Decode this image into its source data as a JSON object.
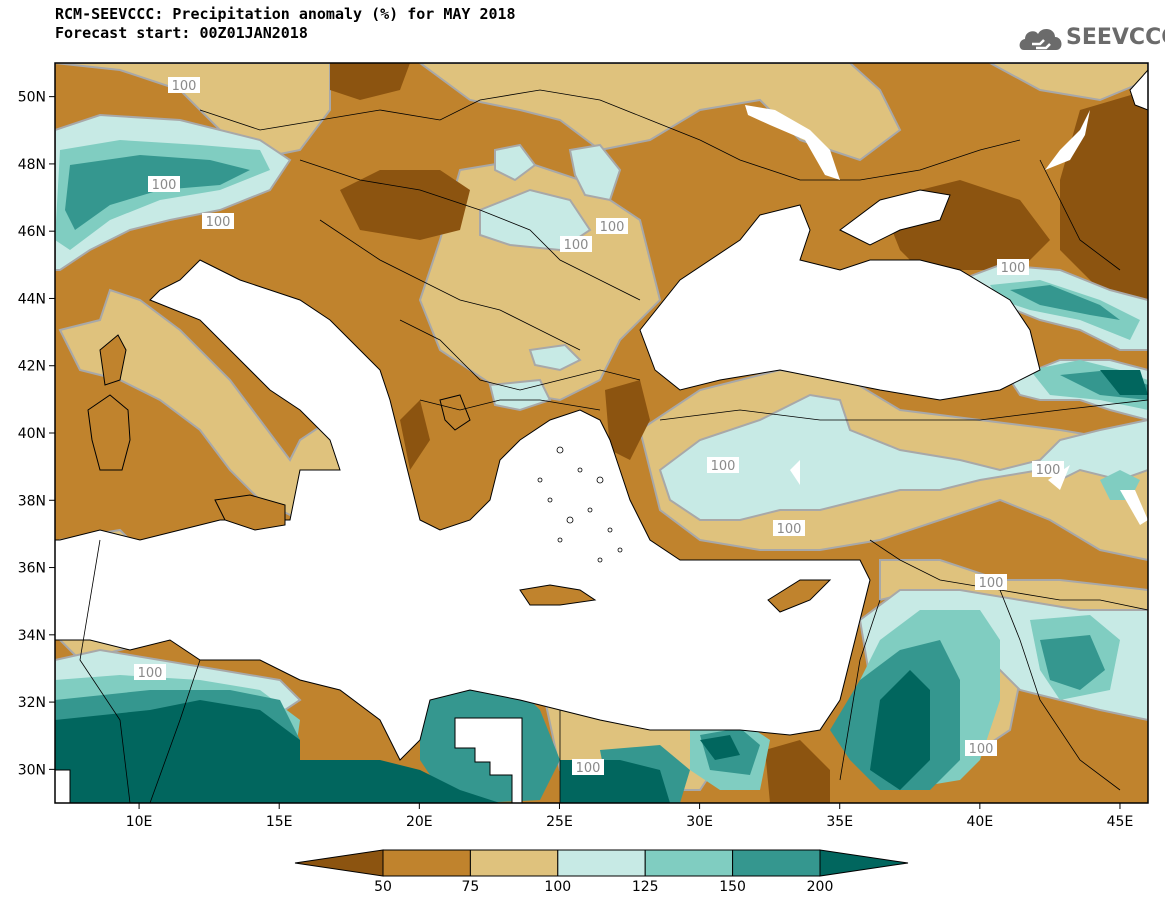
{
  "title": "RCM-SEEVCCC: Precipitation anomaly (%) for MAY 2018",
  "subtitle": "Forecast start: 00Z01JAN2018",
  "logo": {
    "text": "SEEVCCC",
    "icon": "cloud-icon"
  },
  "map": {
    "lon_range": [
      7,
      46
    ],
    "lat_range": [
      29,
      51
    ],
    "x_ticks": [
      "10E",
      "15E",
      "20E",
      "25E",
      "30E",
      "35E",
      "40E",
      "45E"
    ],
    "y_ticks": [
      "50N",
      "48N",
      "46N",
      "44N",
      "42N",
      "40N",
      "38N",
      "36N",
      "34N",
      "32N",
      "30N"
    ],
    "contour_labels": [
      "100",
      "100",
      "100",
      "100",
      "100",
      "100",
      "100",
      "100",
      "100",
      "100",
      "100",
      "100",
      "100"
    ]
  },
  "legend": {
    "labels": [
      "50",
      "75",
      "100",
      "125",
      "150",
      "200"
    ],
    "colors": [
      "#8c5410",
      "#c0832d",
      "#dfc27d",
      "#c7eae5",
      "#80cdc1",
      "#35978f",
      "#01665e"
    ]
  }
}
